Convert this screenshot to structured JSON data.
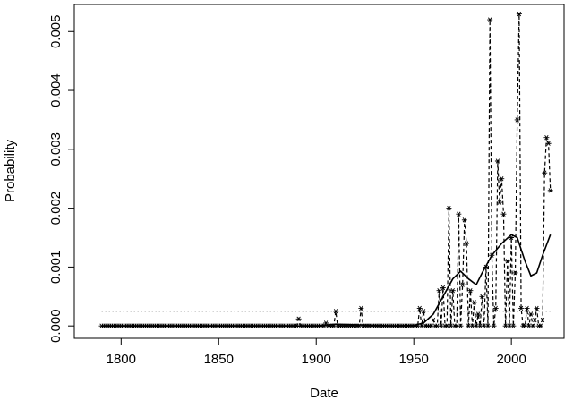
{
  "chart_data": {
    "type": "scatter",
    "xlabel": "Date",
    "ylabel": "Probability",
    "x": [
      1790,
      1791,
      1792,
      1793,
      1794,
      1795,
      1796,
      1797,
      1798,
      1799,
      1800,
      1801,
      1802,
      1803,
      1804,
      1805,
      1806,
      1807,
      1808,
      1809,
      1810,
      1811,
      1812,
      1813,
      1814,
      1815,
      1816,
      1817,
      1818,
      1819,
      1820,
      1821,
      1822,
      1823,
      1824,
      1825,
      1826,
      1827,
      1828,
      1829,
      1830,
      1831,
      1832,
      1833,
      1834,
      1835,
      1836,
      1837,
      1838,
      1839,
      1840,
      1841,
      1842,
      1843,
      1844,
      1845,
      1846,
      1847,
      1848,
      1849,
      1850,
      1851,
      1852,
      1853,
      1854,
      1855,
      1856,
      1857,
      1858,
      1859,
      1860,
      1861,
      1862,
      1863,
      1864,
      1865,
      1866,
      1867,
      1868,
      1869,
      1870,
      1871,
      1872,
      1873,
      1874,
      1875,
      1876,
      1877,
      1878,
      1879,
      1880,
      1881,
      1882,
      1883,
      1884,
      1885,
      1886,
      1887,
      1888,
      1889,
      1890,
      1891,
      1892,
      1893,
      1894,
      1895,
      1896,
      1897,
      1898,
      1899,
      1900,
      1901,
      1902,
      1903,
      1904,
      1905,
      1906,
      1907,
      1908,
      1909,
      1910,
      1911,
      1912,
      1913,
      1914,
      1915,
      1916,
      1917,
      1918,
      1919,
      1920,
      1921,
      1922,
      1923,
      1924,
      1925,
      1926,
      1927,
      1928,
      1929,
      1930,
      1931,
      1932,
      1933,
      1934,
      1935,
      1936,
      1937,
      1938,
      1939,
      1940,
      1941,
      1942,
      1943,
      1944,
      1945,
      1946,
      1947,
      1948,
      1949,
      1950,
      1951,
      1952,
      1953,
      1954,
      1955,
      1956,
      1957,
      1958,
      1959,
      1960,
      1961,
      1962,
      1963,
      1964,
      1965,
      1966,
      1967,
      1968,
      1969,
      1970,
      1971,
      1972,
      1973,
      1974,
      1975,
      1976,
      1977,
      1978,
      1979,
      1980,
      1981,
      1982,
      1983,
      1984,
      1985,
      1986,
      1987,
      1988,
      1989,
      1990,
      1991,
      1992,
      1993,
      1994,
      1995,
      1996,
      1997,
      1998,
      1999,
      2000,
      2001,
      2002,
      2003,
      2004,
      2005,
      2006,
      2007,
      2008,
      2009,
      2010,
      2011,
      2012,
      2013,
      2014,
      2015,
      2016,
      2017,
      2018,
      2019,
      2020
    ],
    "series": [
      {
        "marker": "asterisk",
        "line": "dashed",
        "color": "#000000",
        "values": [
          0,
          0,
          0,
          0,
          0,
          0,
          0,
          0,
          0,
          0,
          0,
          0,
          0,
          0,
          0,
          0,
          0,
          0,
          0,
          0,
          0,
          0,
          0,
          0,
          0,
          0,
          0,
          0,
          0,
          0,
          0,
          0,
          0,
          0,
          0,
          0,
          0,
          0,
          0,
          0,
          0,
          0,
          0,
          0,
          0,
          0,
          0,
          0,
          0,
          0,
          0,
          0,
          0,
          0,
          0,
          0,
          0,
          0,
          0,
          0,
          0,
          0,
          0,
          0,
          0,
          0,
          0,
          0,
          0,
          0,
          0,
          0,
          0,
          0,
          0,
          0,
          0,
          0,
          0,
          0,
          0,
          0,
          0,
          0,
          0,
          0,
          0,
          0,
          0,
          0,
          0,
          0,
          0,
          0,
          0,
          0,
          0,
          0,
          0,
          0,
          0,
          0.00012,
          0,
          0,
          0,
          0,
          0,
          0,
          0,
          0,
          0,
          0,
          0,
          0,
          0,
          5e-05,
          0,
          0,
          0,
          0,
          0.00025,
          0,
          0,
          0,
          0,
          0,
          0,
          0,
          0,
          0,
          0,
          0,
          0,
          0.0003,
          0,
          0,
          0,
          0,
          0,
          0,
          0,
          0,
          0,
          0,
          0,
          0,
          0,
          0,
          0,
          0,
          0,
          0,
          0,
          0,
          0,
          0,
          0,
          0,
          0,
          0,
          0,
          0,
          0,
          0.0003,
          0,
          0.00025,
          0,
          0,
          0,
          0,
          0.0001,
          0,
          0,
          0.0006,
          0,
          0.00065,
          0,
          0,
          0.002,
          0,
          0.0006,
          0,
          0,
          0.0019,
          0,
          0.0007,
          0.0018,
          0.0014,
          0,
          0.0006,
          0,
          0.0004,
          0,
          0.0002,
          0,
          0.0005,
          0,
          0.001,
          0,
          0.0052,
          0.0012,
          0,
          0.0003,
          0.0028,
          0.0021,
          0.0025,
          0.0019,
          0,
          0.0011,
          0,
          0.0015,
          0,
          0.0009,
          0.0035,
          0.0053,
          0.0003,
          0,
          0,
          0.0003,
          0,
          0.0002,
          0,
          0.0001,
          0.0003,
          0,
          0,
          0.0001,
          0.0026,
          0.0032,
          0.0031,
          0.0023
        ]
      }
    ],
    "smooth": {
      "color": "#000000",
      "x": [
        1790,
        1900,
        1910,
        1920,
        1940,
        1950,
        1955,
        1960,
        1965,
        1970,
        1974,
        1978,
        1982,
        1985,
        1990,
        1995,
        2000,
        2003,
        2007,
        2010,
        2013,
        2016,
        2020
      ],
      "values": [
        0,
        0,
        3e-05,
        2e-05,
        0,
        1e-05,
        5e-05,
        0.0002,
        0.0005,
        0.0008,
        0.00093,
        0.0008,
        0.0007,
        0.0009,
        0.0012,
        0.0014,
        0.00155,
        0.0015,
        0.0011,
        0.00085,
        0.0009,
        0.0012,
        0.00155
      ]
    },
    "hline": {
      "value": 0.00025,
      "line": "dotted",
      "color": "#555555"
    },
    "xlim": [
      1776,
      2027
    ],
    "ylim": [
      -0.00021,
      0.00546
    ],
    "xticks": [
      1800,
      1850,
      1900,
      1950,
      2000
    ],
    "yticks": [
      {
        "value": 0,
        "label": "0.000"
      },
      {
        "value": 0.001,
        "label": "0.001"
      },
      {
        "value": 0.002,
        "label": "0.002"
      },
      {
        "value": 0.003,
        "label": "0.003"
      },
      {
        "value": 0.004,
        "label": "0.004"
      },
      {
        "value": 0.005,
        "label": "0.005"
      }
    ]
  }
}
